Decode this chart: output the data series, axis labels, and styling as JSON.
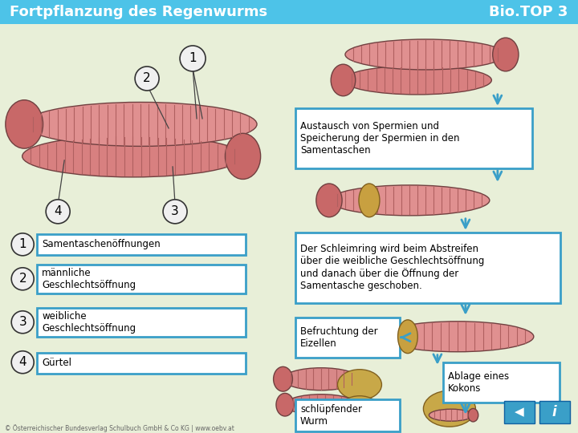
{
  "title_left": "Fortpflanzung des Regenwurms",
  "title_right": "Bio.TOP 3",
  "header_bg": "#4dc3e8",
  "header_text_color": "#ffffff",
  "body_bg": "#e8efd8",
  "box_border_color": "#3a9fc8",
  "box_bg": "#ffffff",
  "label_circle_bg": "#f0f0f0",
  "label_circle_border": "#333333",
  "arrow_color": "#3a9fc8",
  "worm_pink": "#e08888",
  "worm_seg": "#b06060",
  "worm_edge": "#704040",
  "worm_head": "#d07070",
  "worm_clitellum": "#c8a040",
  "legend_items": [
    {
      "num": "1",
      "text": "Samentaschenöffnungen"
    },
    {
      "num": "2",
      "text": "männliche\nGeschlechtsöffnung"
    },
    {
      "num": "3",
      "text": "weibliche\nGeschlechtsöffnung"
    },
    {
      "num": "4",
      "text": "Gürtel"
    }
  ],
  "copyright": "© Österreichischer Bundesverlag Schulbuch GmbH & Co KG | www.oebv.at"
}
